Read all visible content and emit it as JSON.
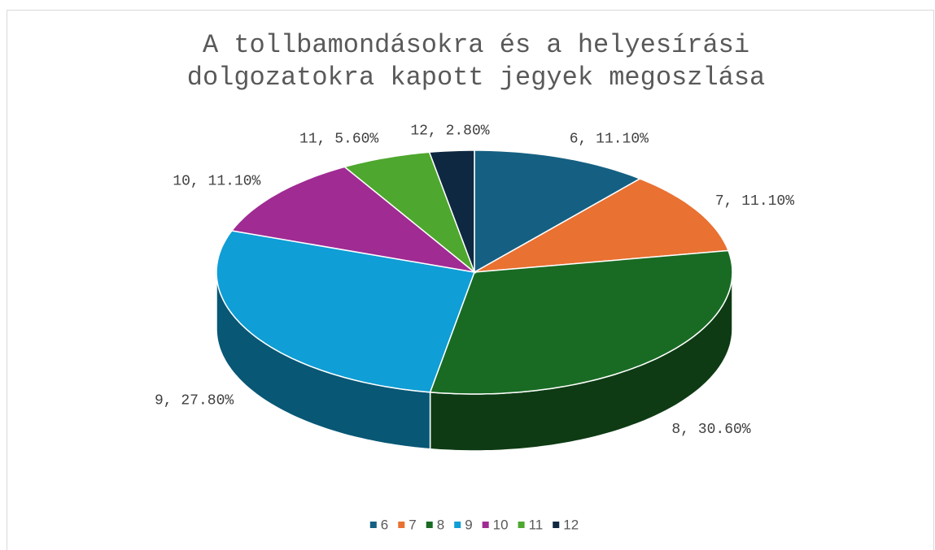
{
  "chart_data": {
    "type": "pie",
    "title": "A tollbamondásokra és a helyesírási dolgozatokra kapott jegyek megoszlása",
    "categories": [
      "6",
      "7",
      "8",
      "9",
      "10",
      "11",
      "12"
    ],
    "values": [
      11.1,
      11.1,
      30.6,
      27.8,
      11.1,
      5.6,
      2.8
    ],
    "value_labels": [
      "6, 11.10%",
      "7, 11.10%",
      "8, 30.60%",
      "9, 27.80%",
      "10, 11.10%",
      "11, 5.60%",
      "12, 2.80%"
    ],
    "colors": [
      "#156082",
      "#e97132",
      "#196b24",
      "#0f9ed5",
      "#a02b93",
      "#4ea72e",
      "#0e2841"
    ],
    "legend": "bottom"
  }
}
